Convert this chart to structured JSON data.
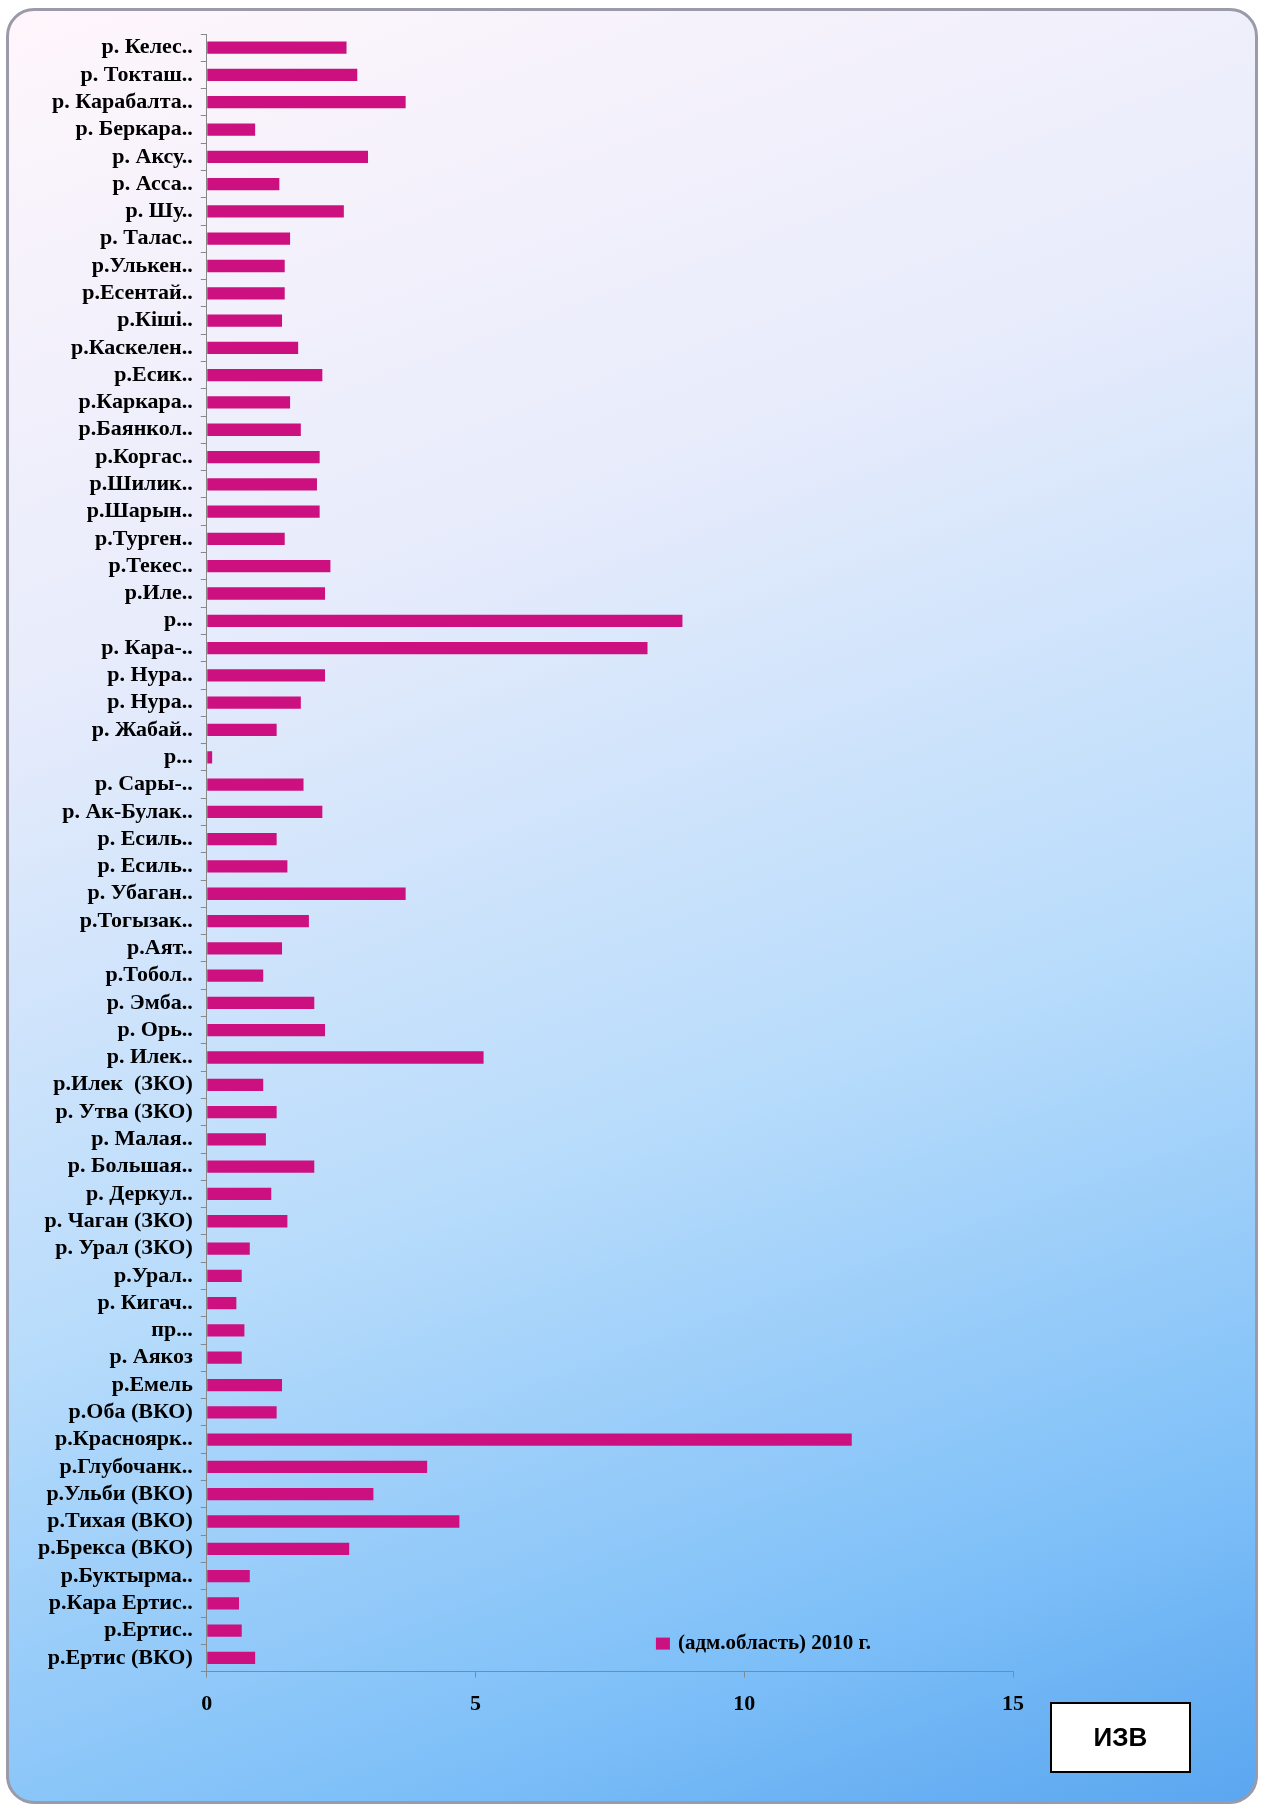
{
  "chart_data": {
    "type": "bar",
    "orientation": "horizontal",
    "categories": [
      "р. Келес..",
      "р. Токташ..",
      "р. Карабалта..",
      "р. Беркара..",
      "р. Аксу..",
      "р. Асса..",
      "р. Шу..",
      "р. Талас..",
      "р.Улькен..",
      "р.Есентай..",
      "р.Кіші..",
      "р.Каскелен..",
      "р.Есик..",
      "р.Каркара..",
      "р.Баянкол..",
      "р.Коргас..",
      "р.Шилик..",
      "р.Шарын..",
      "р.Турген..",
      "р.Текес..",
      "р.Иле..",
      "р...",
      "р. Кара-..",
      "р. Нура..",
      "р. Нура..",
      "р. Жабай..",
      "р...",
      "р. Сары-..",
      "р. Ак-Булак..",
      "р. Есиль..",
      "р. Есиль..",
      "р. Убаган..",
      "р.Тогызак..",
      "р.Аят..",
      "р.Тобол..",
      "р. Эмба..",
      "р. Орь..",
      "р. Илек..",
      "р.Илек  (ЗКО)",
      "р. Утва (ЗКО)",
      "р. Малая..",
      "р. Большая..",
      "р. Деркул..",
      "р. Чаган (ЗКО)",
      "р. Урал (ЗКО)",
      "р.Урал..",
      "р. Кигач..",
      "пр...",
      "р. Аякоз",
      "р.Емель",
      "р.Оба (ВКО)",
      "р.Красноярк..",
      "р.Глубочанк..",
      "р.Ульби (ВКО)",
      "р.Тихая (ВКО)",
      "р.Брекса (ВКО)",
      "р.Буктырма..",
      "р.Кара Ертис..",
      "р.Ертис..",
      "р.Ертис (ВКО)"
    ],
    "series": [
      {
        "name": "(адм.область) 2010 г.",
        "color": "#cc1080",
        "values": [
          2.6,
          2.8,
          3.7,
          0.9,
          3.0,
          1.35,
          2.55,
          1.55,
          1.45,
          1.45,
          1.4,
          1.7,
          2.15,
          1.55,
          1.75,
          2.1,
          2.05,
          2.1,
          1.45,
          2.3,
          2.2,
          8.85,
          8.2,
          2.2,
          1.75,
          1.3,
          0.1,
          1.8,
          2.15,
          1.3,
          1.5,
          3.7,
          1.9,
          1.4,
          1.05,
          2.0,
          2.2,
          5.15,
          1.05,
          1.3,
          1.1,
          2.0,
          1.2,
          1.5,
          0.8,
          0.65,
          0.55,
          0.7,
          0.65,
          1.4,
          1.3,
          12.0,
          4.1,
          3.1,
          4.7,
          2.65,
          0.8,
          0.6,
          0.65,
          0.9
        ]
      }
    ],
    "xlim": [
      0,
      15
    ],
    "xticks": [
      0,
      5,
      10,
      15
    ],
    "grid": false,
    "legend": "bottom right",
    "annotations": [
      "ИЗВ"
    ]
  }
}
